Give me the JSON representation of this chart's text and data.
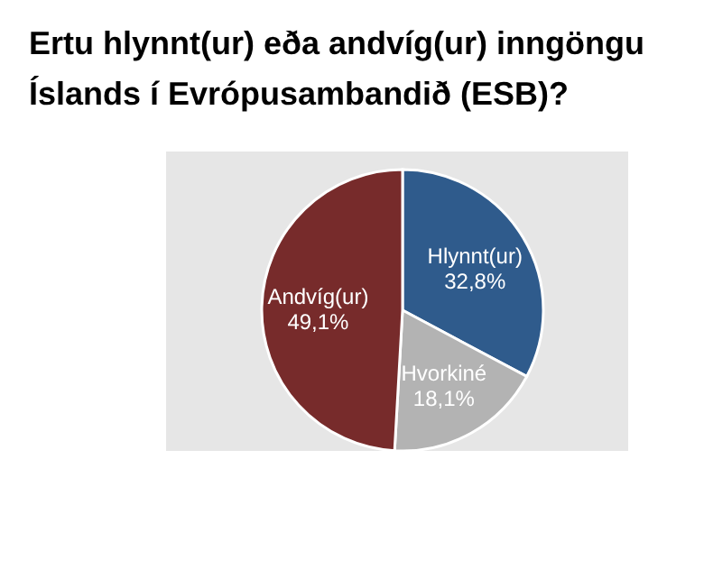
{
  "chart_data": {
    "type": "pie",
    "title": "Ertu hlynnt(ur) eða andvíg(ur) inngöngu Íslands í Evrópusambandið (ESB)?",
    "categories": [
      "Hlynnt(ur)",
      "Hvorkiné",
      "Andvíg(ur)"
    ],
    "values": [
      32.8,
      18.1,
      49.1
    ],
    "value_labels": [
      "32,8%",
      "18,1%",
      "49,1%"
    ],
    "colors": [
      "#2f5b8c",
      "#b3b3b3",
      "#772b2b"
    ]
  }
}
